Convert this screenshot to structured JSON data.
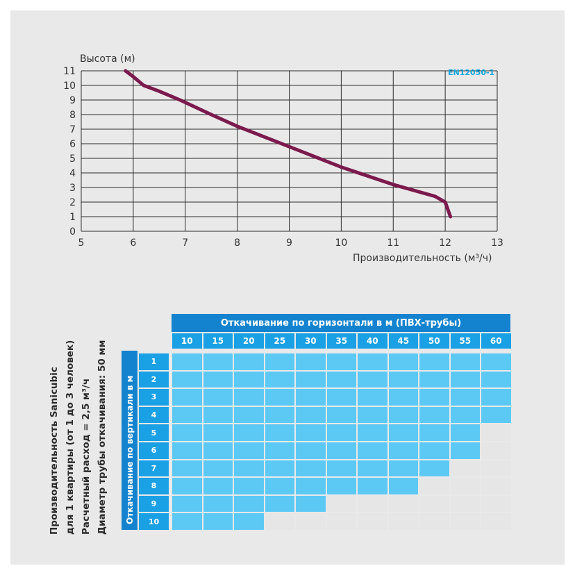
{
  "chart_data": [
    {
      "type": "line",
      "ylabel": "Высота (м)",
      "xlabel": "Производительность (м³/ч)",
      "standard_label": "EN12050-1",
      "xlim": [
        5,
        13
      ],
      "ylim": [
        0,
        11
      ],
      "x_ticks": [
        "5",
        "6",
        "7",
        "8",
        "9",
        "10",
        "11",
        "12",
        "13"
      ],
      "y_ticks": [
        "0",
        "1",
        "2",
        "3",
        "4",
        "5",
        "6",
        "7",
        "8",
        "9",
        "10",
        "11"
      ],
      "grid": true,
      "line_color": "#7b1a4d",
      "points": [
        {
          "x": 5.85,
          "y": 11.0
        },
        {
          "x": 6.0,
          "y": 10.6
        },
        {
          "x": 6.2,
          "y": 10.0
        },
        {
          "x": 6.5,
          "y": 9.6
        },
        {
          "x": 6.9,
          "y": 9.0
        },
        {
          "x": 7.5,
          "y": 8.0
        },
        {
          "x": 8.0,
          "y": 7.2
        },
        {
          "x": 9.0,
          "y": 5.8
        },
        {
          "x": 10.0,
          "y": 4.4
        },
        {
          "x": 11.0,
          "y": 3.2
        },
        {
          "x": 11.8,
          "y": 2.4
        },
        {
          "x": 12.0,
          "y": 2.0
        },
        {
          "x": 12.1,
          "y": 1.0
        }
      ]
    },
    {
      "type": "table",
      "title": "Откачивание по горизонтали  в м (ПВХ-трубы)",
      "row_header": "Откачивание по вертикали в м",
      "columns": [
        "10",
        "15",
        "20",
        "25",
        "30",
        "35",
        "40",
        "45",
        "50",
        "55",
        "60"
      ],
      "rows": [
        "1",
        "2",
        "3",
        "4",
        "5",
        "6",
        "7",
        "8",
        "9",
        "10"
      ],
      "allowed_count_per_row": [
        11,
        11,
        11,
        11,
        10,
        10,
        9,
        8,
        5,
        3
      ],
      "allowed_color": "#5cc9f5",
      "blocked_color": "#e6e6e6"
    }
  ],
  "side_text": [
    "Производительность Sanicubic",
    "для 1 квартиры (от 1 до 3 человек)",
    "Расчетный расход = 2,5 м³/ч",
    "Диаметр трубы откачивания: 50 мм"
  ]
}
